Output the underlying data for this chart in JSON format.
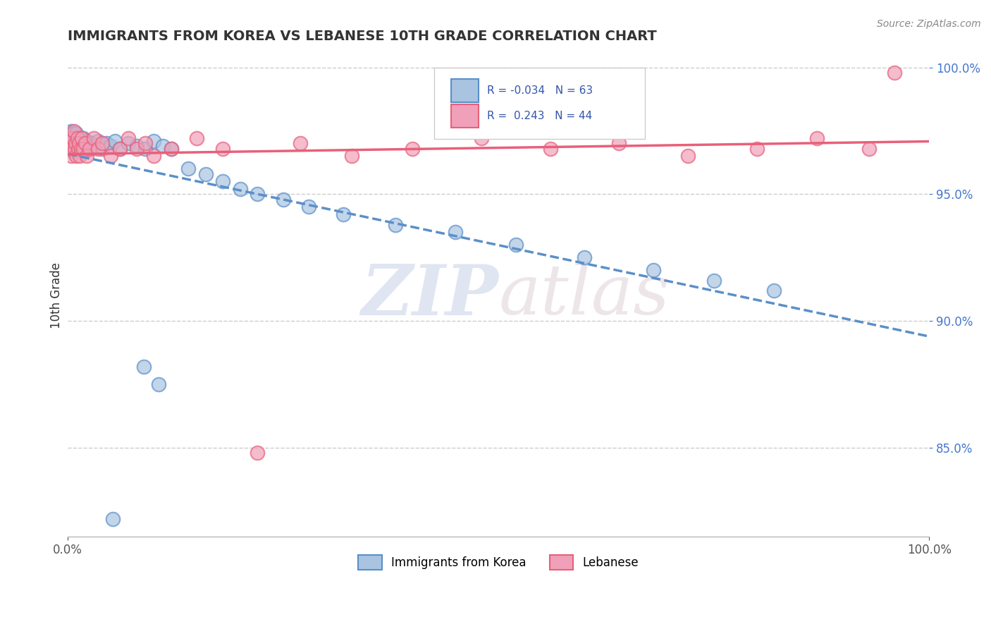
{
  "title": "IMMIGRANTS FROM KOREA VS LEBANESE 10TH GRADE CORRELATION CHART",
  "source_text": "Source: ZipAtlas.com",
  "ylabel": "10th Grade",
  "xlim": [
    0.0,
    1.0
  ],
  "ylim": [
    0.815,
    1.005
  ],
  "ytick_labels": [
    "85.0%",
    "90.0%",
    "95.0%",
    "100.0%"
  ],
  "ytick_values": [
    0.85,
    0.9,
    0.95,
    1.0
  ],
  "xtick_labels": [
    "0.0%",
    "100.0%"
  ],
  "xtick_values": [
    0.0,
    1.0
  ],
  "korea_R": -0.034,
  "korea_N": 63,
  "lebanese_R": 0.243,
  "lebanese_N": 44,
  "korea_color": "#a8c4e0",
  "lebanese_color": "#f0a0b8",
  "korea_line_color": "#5b8fc9",
  "lebanese_line_color": "#e8607a",
  "legend_label_korea": "Immigrants from Korea",
  "legend_label_lebanese": "Lebanese",
  "watermark_zip": "ZIP",
  "watermark_atlas": "atlas",
  "korea_x": [
    0.001,
    0.002,
    0.002,
    0.003,
    0.003,
    0.004,
    0.004,
    0.005,
    0.005,
    0.006,
    0.006,
    0.007,
    0.007,
    0.008,
    0.008,
    0.009,
    0.01,
    0.01,
    0.011,
    0.012,
    0.012,
    0.013,
    0.014,
    0.015,
    0.016,
    0.017,
    0.018,
    0.019,
    0.02,
    0.022,
    0.025,
    0.028,
    0.03,
    0.035,
    0.04,
    0.045,
    0.05,
    0.055,
    0.06,
    0.07,
    0.08,
    0.09,
    0.1,
    0.11,
    0.12,
    0.14,
    0.16,
    0.18,
    0.2,
    0.22,
    0.25,
    0.28,
    0.32,
    0.38,
    0.45,
    0.52,
    0.6,
    0.68,
    0.75,
    0.82,
    0.088,
    0.105,
    0.052
  ],
  "korea_y": [
    0.971,
    0.969,
    0.974,
    0.968,
    0.972,
    0.97,
    0.975,
    0.967,
    0.973,
    0.969,
    0.974,
    0.968,
    0.971,
    0.972,
    0.969,
    0.97,
    0.968,
    0.974,
    0.971,
    0.969,
    0.972,
    0.968,
    0.97,
    0.971,
    0.969,
    0.968,
    0.972,
    0.97,
    0.969,
    0.971,
    0.968,
    0.97,
    0.969,
    0.971,
    0.968,
    0.97,
    0.969,
    0.971,
    0.968,
    0.97,
    0.969,
    0.968,
    0.971,
    0.969,
    0.968,
    0.96,
    0.958,
    0.955,
    0.952,
    0.95,
    0.948,
    0.945,
    0.942,
    0.938,
    0.935,
    0.93,
    0.925,
    0.92,
    0.916,
    0.912,
    0.882,
    0.875,
    0.822
  ],
  "lebanese_x": [
    0.001,
    0.002,
    0.003,
    0.004,
    0.005,
    0.006,
    0.007,
    0.008,
    0.009,
    0.01,
    0.011,
    0.012,
    0.013,
    0.014,
    0.015,
    0.016,
    0.018,
    0.02,
    0.022,
    0.025,
    0.03,
    0.035,
    0.04,
    0.05,
    0.06,
    0.07,
    0.08,
    0.09,
    0.1,
    0.12,
    0.15,
    0.18,
    0.22,
    0.27,
    0.33,
    0.4,
    0.48,
    0.56,
    0.64,
    0.72,
    0.8,
    0.87,
    0.93,
    0.96
  ],
  "lebanese_y": [
    0.968,
    0.972,
    0.97,
    0.965,
    0.968,
    0.972,
    0.975,
    0.968,
    0.97,
    0.965,
    0.972,
    0.968,
    0.97,
    0.965,
    0.968,
    0.972,
    0.968,
    0.97,
    0.965,
    0.968,
    0.972,
    0.968,
    0.97,
    0.965,
    0.968,
    0.972,
    0.968,
    0.97,
    0.965,
    0.968,
    0.972,
    0.968,
    0.848,
    0.97,
    0.965,
    0.968,
    0.972,
    0.968,
    0.97,
    0.965,
    0.968,
    0.972,
    0.968,
    0.998
  ]
}
